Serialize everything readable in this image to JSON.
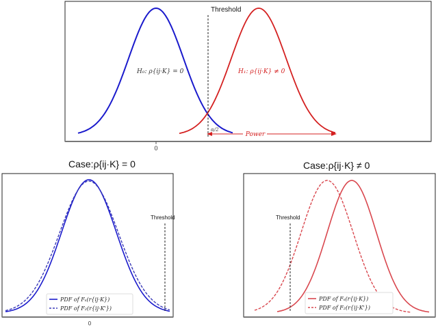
{
  "top": {
    "threshold_label": "Threshold",
    "zero_tick": "0",
    "h0_label": "H₀: ρ{ij·K} = 0",
    "h1_label": "H₁: ρ{ij·K} ≠ 0",
    "alpha_label": "α/2",
    "power_label": "Power"
  },
  "left": {
    "title": "Case:ρ{ij·K} = 0",
    "threshold_label": "Threshold",
    "zero_tick": "0",
    "legend": [
      "PDF of Fₛ(r{ij·K})",
      "PDF of F₂(r{ij·K'})"
    ]
  },
  "right": {
    "title": "Case:ρ{ij·K} ≠ 0",
    "threshold_label": "Threshold",
    "legend": [
      "PDF of Fₛ(r{ij·K})",
      "PDF of F₂(r{ij·K'})"
    ]
  },
  "colors": {
    "blue": "#1a1acc",
    "red": "#d42020",
    "red_light": "#d9474e",
    "blue_light": "#3a3ab8"
  }
}
